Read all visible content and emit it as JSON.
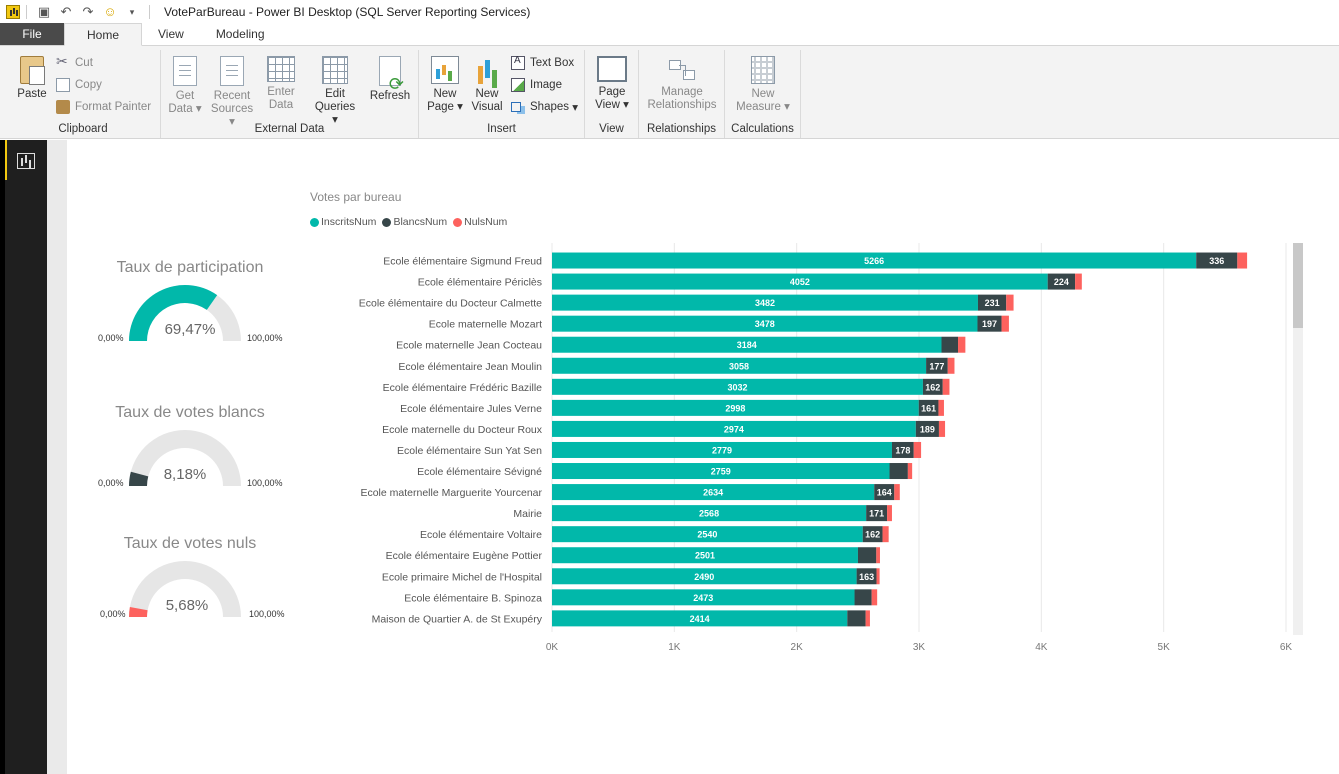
{
  "titlebar": {
    "title": "VoteParBureau - Power BI Desktop (SQL Server Reporting Services)"
  },
  "tabs": {
    "file": "File",
    "home": "Home",
    "view": "View",
    "modeling": "Modeling"
  },
  "ribbon": {
    "clipboard": {
      "label": "Clipboard",
      "paste": "Paste",
      "cut": "Cut",
      "copy": "Copy",
      "format_painter": "Format Painter"
    },
    "external_data": {
      "label": "External Data",
      "get_data": "Get",
      "get_data2": "Data",
      "recent_sources": "Recent",
      "recent_sources2": "Sources",
      "enter_data": "Enter",
      "enter_data2": "Data",
      "edit_queries": "Edit",
      "edit_queries2": "Queries",
      "refresh": "Refresh"
    },
    "insert": {
      "label": "Insert",
      "new_page": "New",
      "new_page2": "Page",
      "new_visual": "New",
      "new_visual2": "Visual",
      "text_box": "Text Box",
      "image": "Image",
      "shapes": "Shapes"
    },
    "view": {
      "label": "View",
      "page_view": "Page",
      "page_view2": "View"
    },
    "relationships": {
      "label": "Relationships",
      "manage": "Manage",
      "manage2": "Relationships"
    },
    "calculations": {
      "label": "Calculations",
      "new_measure": "New",
      "new_measure2": "Measure"
    }
  },
  "gauges": [
    {
      "title": "Taux de participation",
      "value_text": "69,47%",
      "fraction": 0.6947,
      "min": "0,00%",
      "max": "100,00%",
      "color": "#01b8aa"
    },
    {
      "title": "Taux de votes blancs",
      "value_text": "8,18%",
      "fraction": 0.0818,
      "min": "0,00%",
      "max": "100,00%",
      "color": "#374649"
    },
    {
      "title": "Taux de votes nuls",
      "value_text": "5,68%",
      "fraction": 0.0568,
      "min": "0,00%",
      "max": "100,00%",
      "color": "#fd625e"
    }
  ],
  "chart_data": {
    "type": "bar",
    "orientation": "horizontal",
    "stacked": true,
    "title": "Votes par bureau",
    "legend_position": "top-left",
    "grid": true,
    "xlim": [
      0,
      6000
    ],
    "x_ticks": [
      "0K",
      "1K",
      "2K",
      "3K",
      "4K",
      "5K",
      "6K"
    ],
    "categories": [
      "Ecole élémentaire Sigmund Freud",
      "Ecole élémentaire Périclès",
      "Ecole élémentaire du Docteur Calmette",
      "Ecole maternelle Mozart",
      "Ecole maternelle Jean Cocteau",
      "Ecole élémentaire Jean Moulin",
      "Ecole élémentaire Frédéric Bazille",
      "Ecole élémentaire Jules Verne",
      "Ecole maternelle du Docteur Roux",
      "Ecole élémentaire Sun Yat Sen",
      "Ecole élémentaire Sévigné",
      "Ecole maternelle Marguerite Yourcenar",
      "Mairie",
      "Ecole élémentaire Voltaire",
      "Ecole élémentaire Eugène Pottier",
      "Ecole primaire Michel de l'Hospital",
      "Ecole élémentaire B. Spinoza",
      "Maison de Quartier A. de St Exupéry"
    ],
    "series": [
      {
        "name": "InscritsNum",
        "color": "#01b8aa",
        "values": [
          5266,
          4052,
          3482,
          3478,
          3184,
          3058,
          3032,
          2998,
          2974,
          2779,
          2759,
          2634,
          2568,
          2540,
          2501,
          2490,
          2473,
          2414
        ],
        "labels_shown": [
          true,
          true,
          true,
          true,
          true,
          true,
          true,
          true,
          true,
          true,
          true,
          true,
          true,
          true,
          true,
          true,
          true,
          true
        ]
      },
      {
        "name": "BlancsNum",
        "color": "#374649",
        "values": [
          336,
          224,
          231,
          197,
          135,
          177,
          162,
          161,
          189,
          178,
          150,
          164,
          171,
          162,
          150,
          163,
          140,
          150
        ],
        "labels_shown": [
          true,
          true,
          true,
          true,
          false,
          true,
          true,
          true,
          true,
          true,
          false,
          true,
          true,
          true,
          false,
          true,
          false,
          false
        ]
      },
      {
        "name": "NulsNum",
        "color": "#fd625e",
        "values": [
          80,
          55,
          60,
          60,
          60,
          55,
          55,
          45,
          50,
          60,
          35,
          45,
          40,
          50,
          30,
          25,
          45,
          35
        ],
        "labels_shown": [
          false,
          false,
          false,
          false,
          false,
          false,
          false,
          false,
          false,
          false,
          false,
          false,
          false,
          false,
          false,
          false,
          false,
          false
        ]
      }
    ]
  }
}
